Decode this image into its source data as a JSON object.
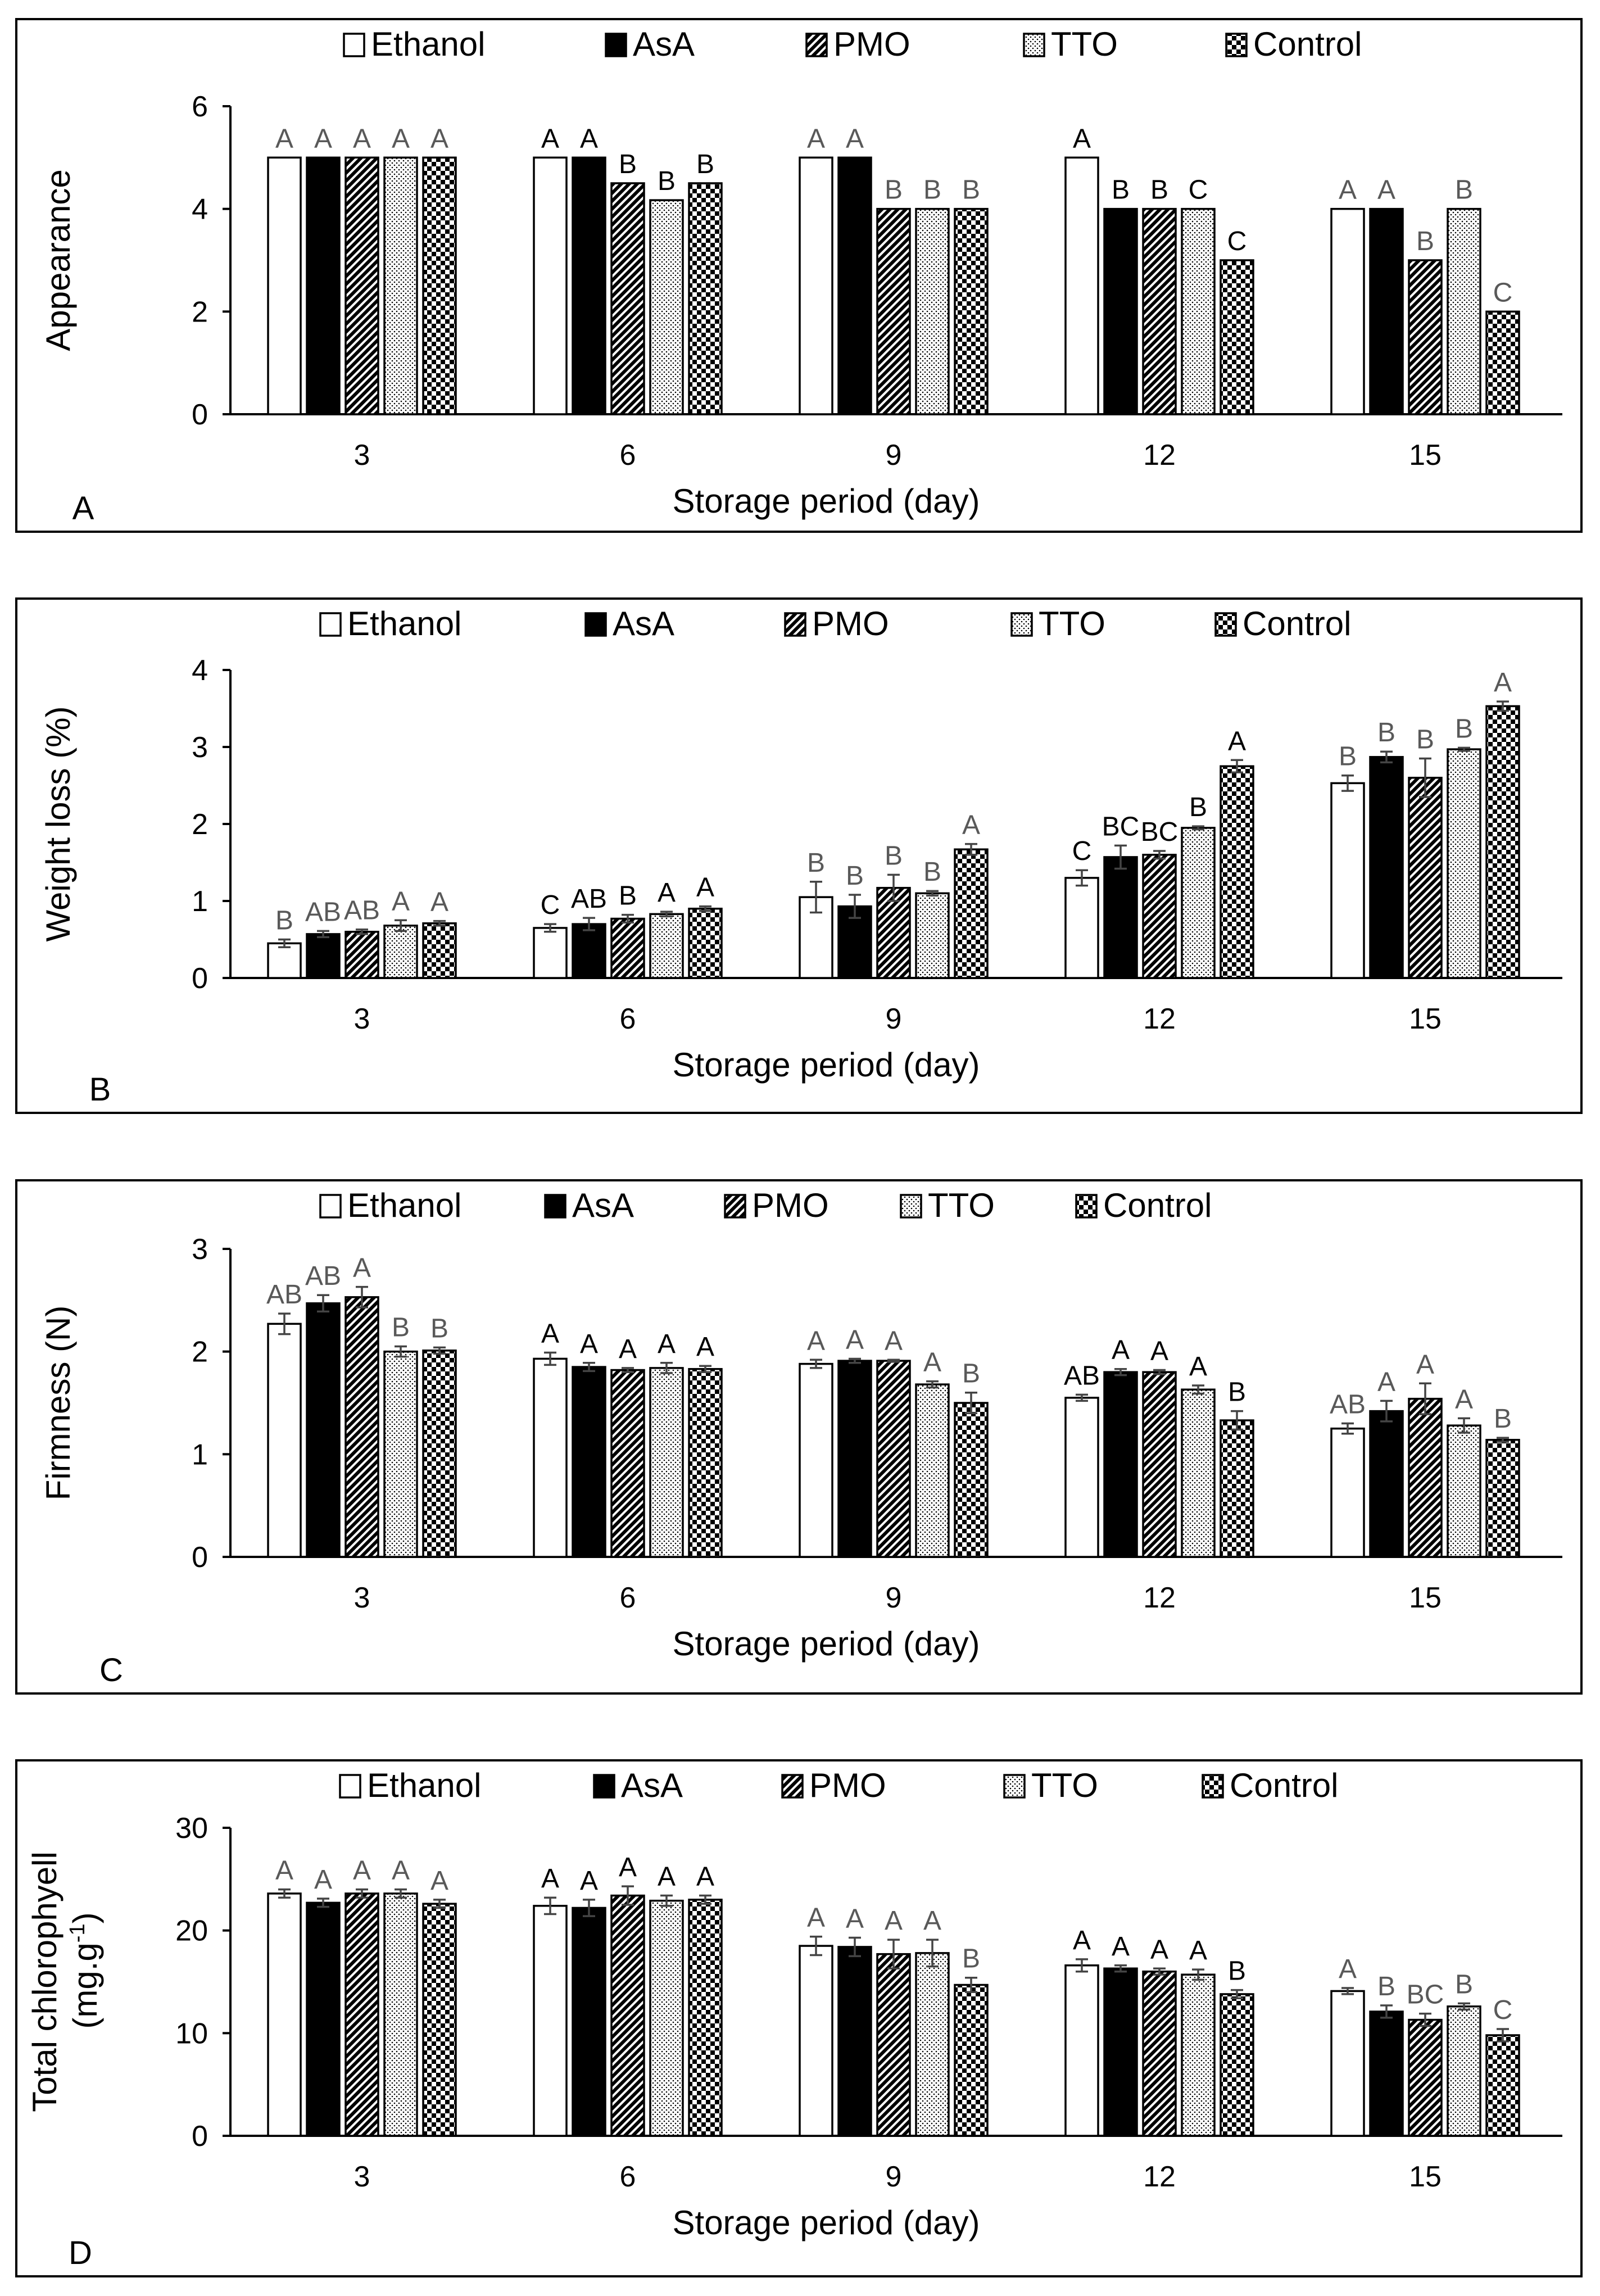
{
  "chart_data": [
    {
      "type": "bar",
      "panel": "A",
      "title": "",
      "categories": [
        "3",
        "6",
        "9",
        "12",
        "15"
      ],
      "xlabel": "Storage period (day)",
      "ylabel": "Appearance",
      "ylim": [
        0,
        6
      ],
      "yticks": [
        "0",
        "2",
        "4",
        "6"
      ],
      "legend_position": "top",
      "series": [
        {
          "name": "Ethanol",
          "values": [
            5,
            5,
            5,
            5,
            4
          ],
          "errors": [
            0,
            0,
            0,
            0,
            0
          ],
          "letters": [
            "A",
            "A",
            "A",
            "A",
            "A"
          ]
        },
        {
          "name": "AsA",
          "values": [
            5,
            5,
            5,
            4,
            4
          ],
          "errors": [
            0,
            0,
            0,
            0,
            0
          ],
          "letters": [
            "A",
            "A",
            "A",
            "B",
            "A"
          ]
        },
        {
          "name": "PMO",
          "values": [
            5,
            4.5,
            4,
            4,
            3
          ],
          "errors": [
            0,
            0,
            0,
            0,
            0
          ],
          "letters": [
            "A",
            "B",
            "B",
            "B",
            "B"
          ]
        },
        {
          "name": "TTO",
          "values": [
            5,
            4.17,
            4,
            4,
            4
          ],
          "errors": [
            0,
            0,
            0,
            0,
            0
          ],
          "letters": [
            "A",
            "B",
            "B",
            "C",
            "B"
          ]
        },
        {
          "name": "Control",
          "values": [
            5,
            4.5,
            4,
            3,
            2
          ],
          "errors": [
            0,
            0,
            0,
            0,
            0
          ],
          "letters": [
            "A",
            "B",
            "B",
            "C",
            "C"
          ]
        }
      ]
    },
    {
      "type": "bar",
      "panel": "B",
      "title": "",
      "categories": [
        "3",
        "6",
        "9",
        "12",
        "15"
      ],
      "xlabel": "Storage period (day)",
      "ylabel": "Weight loss (%)",
      "ylim": [
        0,
        4
      ],
      "yticks": [
        "0",
        "1",
        "2",
        "3",
        "4"
      ],
      "legend_position": "top",
      "series": [
        {
          "name": "Ethanol",
          "values": [
            0.45,
            0.65,
            1.05,
            1.3,
            2.53
          ],
          "errors": [
            0.05,
            0.05,
            0.2,
            0.1,
            0.1
          ],
          "letters": [
            "B",
            "C",
            "B",
            "C",
            "B"
          ]
        },
        {
          "name": "AsA",
          "values": [
            0.57,
            0.7,
            0.93,
            1.57,
            2.87
          ],
          "errors": [
            0.04,
            0.08,
            0.15,
            0.15,
            0.07
          ],
          "letters": [
            "AB",
            "AB",
            "B",
            "BC",
            "B"
          ]
        },
        {
          "name": "PMO",
          "values": [
            0.6,
            0.77,
            1.17,
            1.6,
            2.6
          ],
          "errors": [
            0.03,
            0.05,
            0.17,
            0.05,
            0.25
          ],
          "letters": [
            "AB",
            "B",
            "B",
            "BC",
            "B"
          ]
        },
        {
          "name": "TTO",
          "values": [
            0.68,
            0.83,
            1.1,
            1.95,
            2.97
          ],
          "errors": [
            0.07,
            0.03,
            0.03,
            0.02,
            0.02
          ],
          "letters": [
            "A",
            "A",
            "B",
            "B",
            "B"
          ]
        },
        {
          "name": "Control",
          "values": [
            0.71,
            0.9,
            1.67,
            2.75,
            3.53
          ],
          "errors": [
            0.03,
            0.03,
            0.07,
            0.08,
            0.06
          ],
          "letters": [
            "A",
            "A",
            "A",
            "A",
            "A"
          ]
        }
      ]
    },
    {
      "type": "bar",
      "panel": "C",
      "title": "",
      "categories": [
        "3",
        "6",
        "9",
        "12",
        "15"
      ],
      "xlabel": "Storage period (day)",
      "ylabel": "Firmness (N)",
      "ylim": [
        0,
        3
      ],
      "yticks": [
        "0",
        "1",
        "2",
        "3"
      ],
      "legend_position": "top",
      "series": [
        {
          "name": "Ethanol",
          "values": [
            2.27,
            1.93,
            1.88,
            1.55,
            1.25
          ],
          "errors": [
            0.1,
            0.06,
            0.04,
            0.03,
            0.05
          ],
          "letters": [
            "AB",
            "A",
            "A",
            "AB",
            "AB"
          ]
        },
        {
          "name": "AsA",
          "values": [
            2.47,
            1.85,
            1.91,
            1.8,
            1.42
          ],
          "errors": [
            0.08,
            0.04,
            0.02,
            0.03,
            0.1
          ],
          "letters": [
            "AB",
            "A",
            "A",
            "A",
            "A"
          ]
        },
        {
          "name": "PMO",
          "values": [
            2.53,
            1.82,
            1.91,
            1.8,
            1.54
          ],
          "errors": [
            0.1,
            0.02,
            0.01,
            0.02,
            0.15
          ],
          "letters": [
            "A",
            "A",
            "A",
            "A",
            "A"
          ]
        },
        {
          "name": "TTO",
          "values": [
            2.0,
            1.84,
            1.68,
            1.63,
            1.28
          ],
          "errors": [
            0.05,
            0.05,
            0.03,
            0.04,
            0.07
          ],
          "letters": [
            "B",
            "A",
            "A",
            "A",
            "A"
          ]
        },
        {
          "name": "Control",
          "values": [
            2.01,
            1.83,
            1.5,
            1.33,
            1.14
          ],
          "errors": [
            0.03,
            0.03,
            0.1,
            0.09,
            0.02
          ],
          "letters": [
            "B",
            "A",
            "B",
            "B",
            "B"
          ]
        }
      ]
    },
    {
      "type": "bar",
      "panel": "D",
      "title": "",
      "categories": [
        "3",
        "6",
        "9",
        "12",
        "15"
      ],
      "xlabel": "Storage period (day)",
      "ylabel_line1": "Total chlorophyell",
      "ylabel_line2": "(mg.g",
      "ylabel_sup": "-1",
      "ylabel_end": ")",
      "ylim": [
        0,
        30
      ],
      "yticks": [
        "0",
        "10",
        "20",
        "30"
      ],
      "legend_position": "top",
      "series": [
        {
          "name": "Ethanol",
          "values": [
            23.6,
            22.4,
            18.5,
            16.6,
            14.1
          ],
          "errors": [
            0.4,
            0.8,
            0.9,
            0.6,
            0.3
          ],
          "letters": [
            "A",
            "A",
            "A",
            "A",
            "A"
          ]
        },
        {
          "name": "AsA",
          "values": [
            22.7,
            22.2,
            18.4,
            16.3,
            12.1
          ],
          "errors": [
            0.4,
            0.8,
            0.9,
            0.3,
            0.6
          ],
          "letters": [
            "A",
            "A",
            "A",
            "A",
            "B"
          ]
        },
        {
          "name": "PMO",
          "values": [
            23.6,
            23.4,
            17.7,
            16.0,
            11.3
          ],
          "errors": [
            0.4,
            0.9,
            1.4,
            0.3,
            0.6
          ],
          "letters": [
            "A",
            "A",
            "A",
            "A",
            "BC"
          ]
        },
        {
          "name": "TTO",
          "values": [
            23.6,
            22.9,
            17.8,
            15.7,
            12.6
          ],
          "errors": [
            0.4,
            0.5,
            1.3,
            0.5,
            0.3
          ],
          "letters": [
            "A",
            "A",
            "A",
            "A",
            "B"
          ]
        },
        {
          "name": "Control",
          "values": [
            22.6,
            23.0,
            14.7,
            13.8,
            9.8
          ],
          "errors": [
            0.4,
            0.4,
            0.7,
            0.4,
            0.6
          ],
          "letters": [
            "A",
            "A",
            "B",
            "B",
            "C"
          ]
        }
      ]
    }
  ],
  "styles": {
    "colors": {
      "frame": "#000000",
      "ethanol_fill": "#ffffff",
      "asa_fill": "#000000",
      "sig_letters_dark": "#000000",
      "sig_letters_gray": "#595959"
    },
    "patterns": {
      "Ethanol": "solid-white",
      "AsA": "solid-black",
      "PMO": "diagonal-hatch",
      "TTO": "fine-dots",
      "Control": "checker"
    }
  }
}
